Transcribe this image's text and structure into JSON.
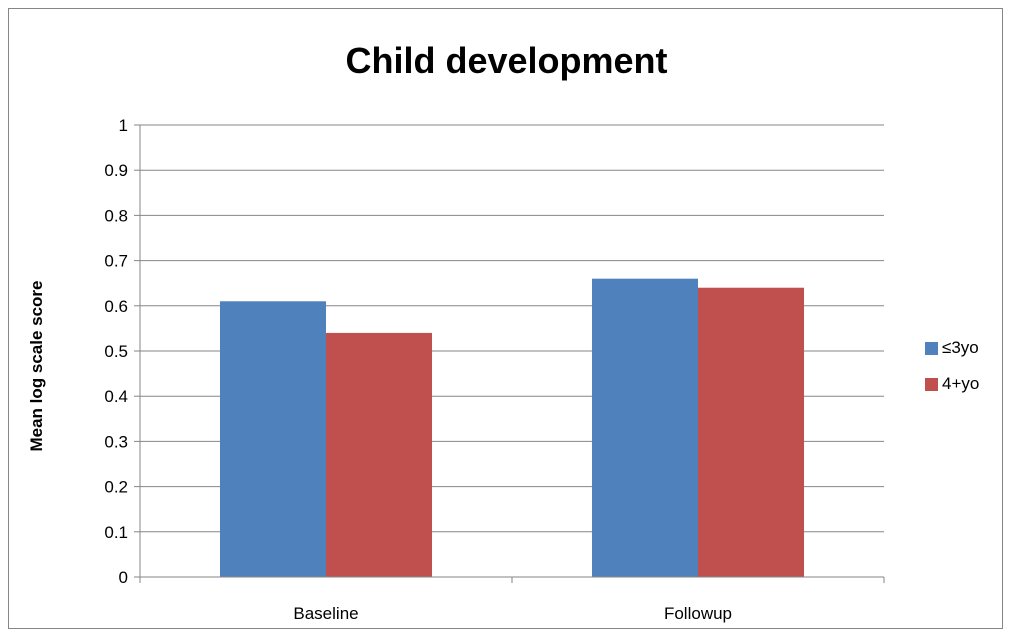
{
  "chart_data": {
    "type": "bar",
    "title": "Child development",
    "xlabel": "",
    "ylabel": "Mean log scale score",
    "categories": [
      "Baseline",
      "Followup"
    ],
    "series": [
      {
        "name": "≤3yo",
        "color": "#4f81bd",
        "values": [
          0.61,
          0.66
        ]
      },
      {
        "name": "4+yo",
        "color": "#c0504d",
        "values": [
          0.54,
          0.64
        ]
      }
    ],
    "ylim": [
      0,
      1
    ],
    "yticks": [
      "0",
      "0.1",
      "0.2",
      "0.3",
      "0.4",
      "0.5",
      "0.6",
      "0.7",
      "0.8",
      "0.9",
      "1"
    ],
    "grid": true,
    "legend_position": "right"
  }
}
